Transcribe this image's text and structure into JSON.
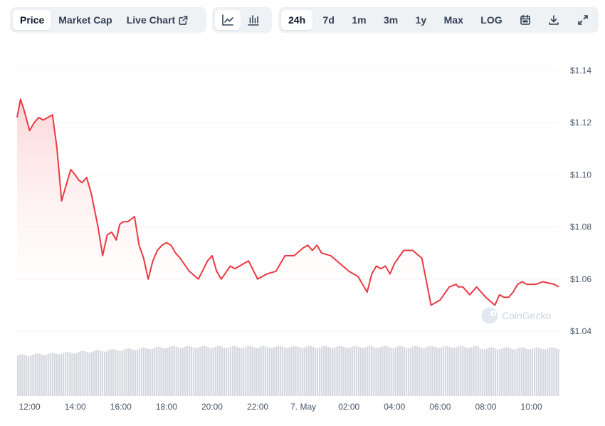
{
  "toolbar": {
    "left_tabs": [
      "Price",
      "Market Cap",
      "Live Chart"
    ],
    "chart_type_icons": [
      "line-chart-icon",
      "candlestick-icon"
    ],
    "ranges": [
      "24h",
      "7d",
      "1m",
      "3m",
      "1y",
      "Max",
      "LOG"
    ],
    "utility_icons": [
      "calendar-icon",
      "download-icon",
      "fullscreen-icon"
    ],
    "active_tab": "Price",
    "active_chart_icon": "line-chart-icon",
    "active_range": "24h"
  },
  "watermark": "CoinGecko",
  "colors": {
    "line": "#ea3943",
    "fill_top": "#fcd3d5",
    "volume_bar": "#d4d7dd",
    "grid": "#eef1f5",
    "text": "#475569"
  },
  "chart_data": {
    "type": "line",
    "title": "",
    "xlabel": "",
    "ylabel": "",
    "x_ticks": [
      "12:00",
      "14:00",
      "16:00",
      "18:00",
      "20:00",
      "22:00",
      "7. May",
      "02:00",
      "04:00",
      "06:00",
      "08:00",
      "10:00"
    ],
    "y_ticks": [
      "$1.04",
      "$1.06",
      "$1.08",
      "$1.10",
      "$1.12",
      "$1.14"
    ],
    "ylim": [
      1.04,
      1.14
    ],
    "xlim": [
      11.45,
      35.2
    ],
    "grid": true,
    "series": [
      {
        "x": [
          11.45,
          11.6,
          11.75,
          12.0,
          12.2,
          12.4,
          12.6,
          12.8,
          13.0,
          13.2,
          13.4,
          13.6,
          13.8,
          14.0,
          14.15,
          14.3,
          14.5,
          14.7,
          15.0,
          15.2,
          15.4,
          15.6,
          15.8,
          15.95,
          16.1,
          16.3,
          16.6,
          16.8,
          17.0,
          17.2,
          17.4,
          17.6,
          17.8,
          18.0,
          18.2,
          18.4,
          18.6,
          19.0,
          19.4,
          19.8,
          20.0,
          20.2,
          20.4,
          20.8,
          21.0,
          21.2,
          21.6,
          22.0,
          22.2,
          22.4,
          22.8,
          23.2,
          23.6,
          24.0,
          24.2,
          24.4,
          24.6,
          24.8,
          25.2,
          25.6,
          26.0,
          26.4,
          26.8,
          27.0,
          27.2,
          27.4,
          27.6,
          27.8,
          28.0,
          28.4,
          28.8,
          29.2,
          29.6,
          30.0,
          30.4,
          30.7,
          30.8,
          31.0,
          31.3,
          31.6,
          32.0,
          32.4,
          32.6,
          32.8,
          33.0,
          33.2,
          33.4,
          33.6,
          33.8,
          34.0,
          34.2,
          34.5,
          35.0,
          35.2
        ],
        "values": [
          1.122,
          1.129,
          1.125,
          1.117,
          1.12,
          1.122,
          1.121,
          1.122,
          1.123,
          1.11,
          1.09,
          1.096,
          1.102,
          1.1,
          1.098,
          1.097,
          1.099,
          1.093,
          1.08,
          1.069,
          1.077,
          1.078,
          1.075,
          1.081,
          1.082,
          1.082,
          1.084,
          1.073,
          1.068,
          1.06,
          1.067,
          1.071,
          1.073,
          1.074,
          1.073,
          1.07,
          1.068,
          1.063,
          1.06,
          1.067,
          1.069,
          1.063,
          1.06,
          1.065,
          1.064,
          1.065,
          1.067,
          1.06,
          1.061,
          1.062,
          1.063,
          1.069,
          1.069,
          1.072,
          1.073,
          1.071,
          1.073,
          1.07,
          1.069,
          1.066,
          1.063,
          1.061,
          1.055,
          1.062,
          1.065,
          1.064,
          1.065,
          1.062,
          1.066,
          1.071,
          1.071,
          1.068,
          1.05,
          1.052,
          1.057,
          1.058,
          1.057,
          1.057,
          1.054,
          1.057,
          1.053,
          1.05,
          1.054,
          1.053,
          1.053,
          1.055,
          1.058,
          1.059,
          1.058,
          1.058,
          1.058,
          1.059,
          1.058,
          1.057
        ]
      }
    ]
  }
}
